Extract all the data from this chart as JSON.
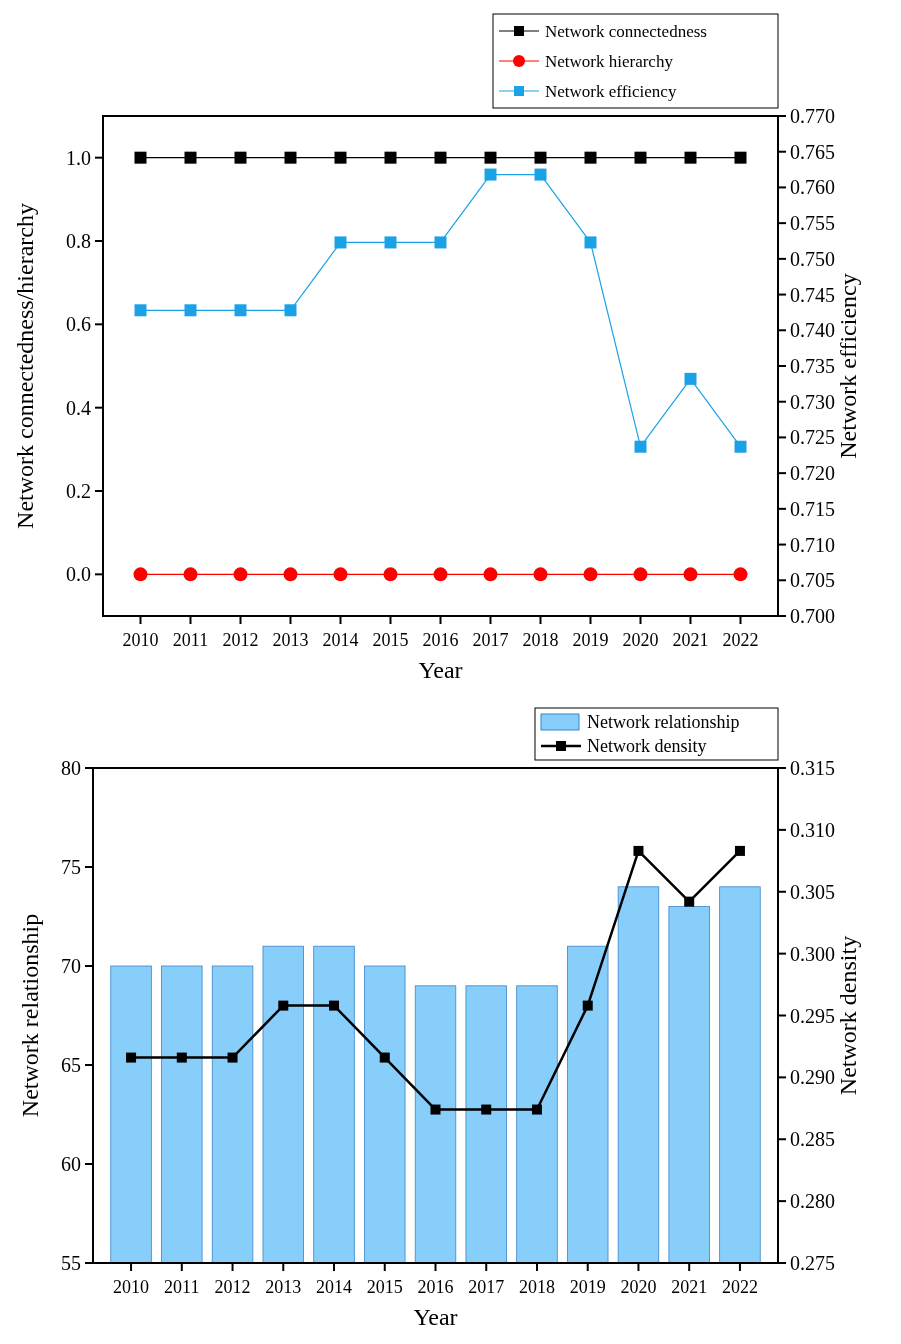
{
  "chart_data": [
    {
      "type": "line",
      "xlabel": "Year",
      "ylabel": "Network connectedness/hierarchy",
      "y2label": "Network efficiency",
      "categories": [
        "2010",
        "2011",
        "2012",
        "2013",
        "2014",
        "2015",
        "2016",
        "2017",
        "2018",
        "2019",
        "2020",
        "2021",
        "2022"
      ],
      "series": [
        {
          "name": "Network connectedness",
          "color": "#000000",
          "marker": "square",
          "values": [
            1,
            1,
            1,
            1,
            1,
            1,
            1,
            1,
            1,
            1,
            1,
            1,
            1
          ]
        },
        {
          "name": "Network hierarchy",
          "color": "#ff0000",
          "marker": "circle",
          "values": [
            0,
            0,
            0,
            0,
            0,
            0,
            0,
            0,
            0,
            0,
            0,
            0,
            0
          ]
        },
        {
          "name": "Network efficiency",
          "color": "#1ba1e6",
          "marker": "square",
          "axis": "y2",
          "values": [
            0.7428,
            0.7428,
            0.7428,
            0.7428,
            0.7523,
            0.7523,
            0.7523,
            0.7618,
            0.7618,
            0.7523,
            0.7237,
            0.7332,
            0.7237
          ]
        }
      ],
      "ylim": [
        -0.1,
        1.1
      ],
      "yticks": [
        {
          "value": 0,
          "label": "0.0"
        },
        0.2,
        0.4,
        0.6,
        0.8,
        {
          "value": 1,
          "label": "1.0"
        }
      ],
      "y2lim": [
        0.7,
        0.77
      ],
      "y2ticks": [
        {
          "value": 0.7,
          "label": "0.700"
        },
        0.705,
        {
          "value": 0.71,
          "label": "0.710"
        },
        0.715,
        {
          "value": 0.72,
          "label": "0.720"
        },
        0.725,
        {
          "value": 0.73,
          "label": "0.730"
        },
        0.735,
        {
          "value": 0.74,
          "label": "0.740"
        },
        0.745,
        {
          "value": 0.75,
          "label": "0.750"
        },
        0.755,
        {
          "value": 0.76,
          "label": "0.760"
        },
        0.765,
        {
          "value": 0.77,
          "label": "0.770"
        }
      ],
      "legend": "top right"
    },
    {
      "type": "bar",
      "xlabel": "Year",
      "ylabel": "Network relationship",
      "y2label": "Network density",
      "categories": [
        "2010",
        "2011",
        "2012",
        "2013",
        "2014",
        "2015",
        "2016",
        "2017",
        "2018",
        "2019",
        "2020",
        "2021",
        "2022"
      ],
      "series": [
        {
          "name": "Network relationship",
          "color": "#87cefa",
          "values": [
            70,
            70,
            70,
            71,
            71,
            70,
            69,
            69,
            69,
            71,
            74,
            73,
            74
          ]
        },
        {
          "name": "Network density",
          "color": "#000000",
          "type": "line",
          "marker": "square",
          "axis": "y2",
          "values": [
            0.2916,
            0.2916,
            0.2916,
            0.2958,
            0.2958,
            0.2916,
            0.2874,
            0.2874,
            0.2874,
            0.2958,
            0.3083,
            0.3042,
            0.3083
          ]
        }
      ],
      "ylim": [
        55,
        80
      ],
      "yticks": [
        55,
        60,
        65,
        70,
        75,
        80
      ],
      "y2lim": [
        0.275,
        0.315
      ],
      "y2ticks": [
        0.275,
        {
          "value": 0.28,
          "label": "0.280"
        },
        0.285,
        {
          "value": 0.29,
          "label": "0.290"
        },
        0.295,
        {
          "value": 0.3,
          "label": "0.300"
        },
        0.305,
        {
          "value": 0.31,
          "label": "0.310"
        },
        0.315
      ],
      "legend": "top right"
    }
  ]
}
